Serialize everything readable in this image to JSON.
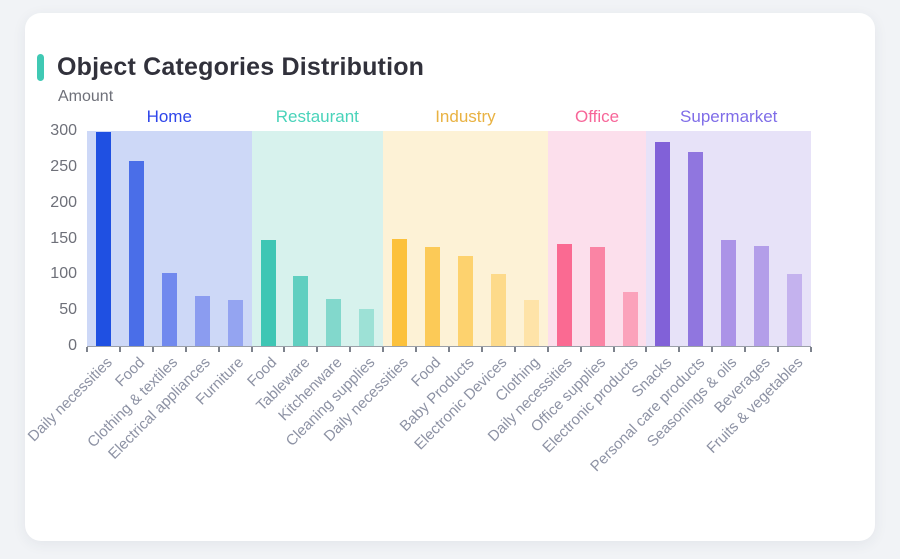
{
  "page": {
    "background": "#f1f3f6"
  },
  "card": {
    "title": "Object Categories Distribution",
    "accent_color": "#40c9b4"
  },
  "chart_data": {
    "type": "bar",
    "title": "Object Categories Distribution",
    "xlabel": "",
    "ylabel": "Amount",
    "ylim": [
      0,
      300
    ],
    "yticks": [
      0,
      50,
      100,
      150,
      200,
      250,
      300
    ],
    "grid": false,
    "legend_position": "none",
    "axis_text_color": "#6E7079",
    "x_label_color": "#8d92a4",
    "groups": [
      {
        "name": "Home",
        "label_color": "#2e45ea",
        "band_color": "#cdd8f7",
        "items": [
          {
            "label": "Daily necessities",
            "value": 298,
            "color": "#1f50e2"
          },
          {
            "label": "Food",
            "value": 258,
            "color": "#4a6ee8"
          },
          {
            "label": "Clothing & textiles",
            "value": 102,
            "color": "#7189ee"
          },
          {
            "label": "Electrical appliances",
            "value": 70,
            "color": "#8b9cf0"
          },
          {
            "label": "Furniture",
            "value": 64,
            "color": "#94a4f1"
          }
        ]
      },
      {
        "name": "Restaurant",
        "label_color": "#49d3ba",
        "band_color": "#d7f2ed",
        "items": [
          {
            "label": "Food",
            "value": 148,
            "color": "#3ec6b4"
          },
          {
            "label": "Tableware",
            "value": 97,
            "color": "#60cfc0"
          },
          {
            "label": "Kitchenware",
            "value": 65,
            "color": "#82d8cc"
          },
          {
            "label": "Cleaning supplies",
            "value": 51,
            "color": "#9de1d6"
          }
        ]
      },
      {
        "name": "Industry",
        "label_color": "#e9b242",
        "band_color": "#fdf2d6",
        "items": [
          {
            "label": "Daily necessities",
            "value": 150,
            "color": "#fcc13b"
          },
          {
            "label": "Food",
            "value": 138,
            "color": "#fcca57"
          },
          {
            "label": "Baby Products",
            "value": 126,
            "color": "#fdd26e"
          },
          {
            "label": "Electronic Devices",
            "value": 100,
            "color": "#fdda8a"
          },
          {
            "label": "Clothing",
            "value": 64,
            "color": "#fee3a8"
          }
        ]
      },
      {
        "name": "Office",
        "label_color": "#f76699",
        "band_color": "#fcdfec",
        "items": [
          {
            "label": "Daily necessities",
            "value": 143,
            "color": "#fa6a92"
          },
          {
            "label": "Office supplies",
            "value": 138,
            "color": "#fa84a4"
          },
          {
            "label": "Electronic products",
            "value": 75,
            "color": "#fba2bb"
          }
        ]
      },
      {
        "name": "Supermarket",
        "label_color": "#7f6de8",
        "band_color": "#e7e2f8",
        "items": [
          {
            "label": "Snacks",
            "value": 285,
            "color": "#8161d8"
          },
          {
            "label": "Personal care products",
            "value": 271,
            "color": "#9076df"
          },
          {
            "label": "Seasonings & oils",
            "value": 148,
            "color": "#ab93e7"
          },
          {
            "label": "Beverages",
            "value": 140,
            "color": "#b39ee9"
          },
          {
            "label": "Fruits & vegetables",
            "value": 101,
            "color": "#c4b2ee"
          }
        ]
      }
    ]
  }
}
